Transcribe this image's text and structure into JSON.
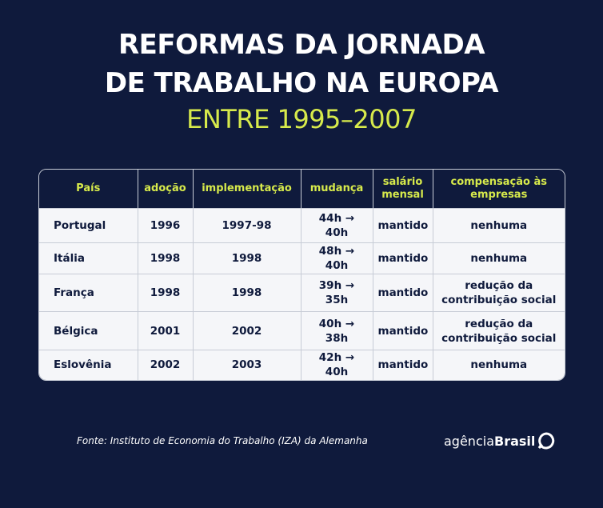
{
  "header": {
    "title_lines": [
      "REFORMAS DA JORNADA",
      "DE TRABALHO NA EUROPA"
    ],
    "subtitle": "ENTRE 1995–2007"
  },
  "table": {
    "columns": [
      "País",
      "adoção",
      "implementação",
      "mudança",
      "salário mensal",
      "compensação às empresas"
    ],
    "rows": [
      [
        "Portugal",
        "1996",
        "1997-98",
        "44h → 40h",
        "mantido",
        "nenhuma"
      ],
      [
        "Itália",
        "1998",
        "1998",
        "48h → 40h",
        "mantido",
        "nenhuma"
      ],
      [
        "França",
        "1998",
        "1998",
        "39h → 35h",
        "mantido",
        "redução da contribuição social"
      ],
      [
        "Bélgica",
        "2001",
        "2002",
        "40h → 38h",
        "mantido",
        "redução da contribuição social"
      ],
      [
        "Eslovênia",
        "2002",
        "2003",
        "42h → 40h",
        "mantido",
        "nenhuma"
      ]
    ]
  },
  "footer": {
    "source": "Fonte: Instituto de Economia do Trabalho (IZA) da Alemanha",
    "logo_light": "agência",
    "logo_bold": "Brasil"
  }
}
